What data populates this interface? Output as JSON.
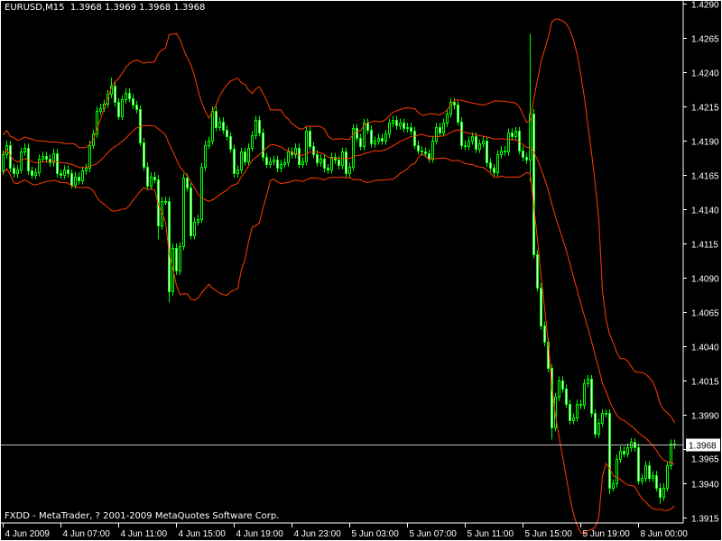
{
  "header": {
    "symbol": "EURUSD,M15",
    "quote": "1.3968 1.3969 1.3968 1.3968"
  },
  "footer": {
    "copyright": "FXDD - MetaTrader, ? 2001-2009 MetaQuotes Software Corp."
  },
  "colors": {
    "background": "#000000",
    "candle_outline": "#00ff00",
    "bull_fill": "#000000",
    "bear_fill": "#ffffff",
    "bands": "#ff3c00",
    "price_line": "#c0c0c0",
    "axis": "#ffffff"
  },
  "chart_data": {
    "type": "candlestick",
    "symbol": "EURUSD",
    "timeframe": "M15",
    "indicator": {
      "name": "Bollinger Bands",
      "period": 20,
      "deviation": 2
    },
    "ylim": [
      1.3915,
      1.429
    ],
    "y_ticks": [
      "1.4290",
      "1.4265",
      "1.4240",
      "1.4215",
      "1.4190",
      "1.4165",
      "1.4140",
      "1.4115",
      "1.4090",
      "1.4065",
      "1.4040",
      "1.4015",
      "1.3990",
      "1.3965",
      "1.3940",
      "1.3915"
    ],
    "x_tick_labels": [
      "4 Jun 2009",
      "4 Jun 07:00",
      "4 Jun 11:00",
      "4 Jun 15:00",
      "4 Jun 19:00",
      "4 Jun 23:00",
      "5 Jun 03:00",
      "5 Jun 07:00",
      "5 Jun 11:00",
      "5 Jun 15:00",
      "5 Jun 19:00",
      "8 Jun 00:00"
    ],
    "current_price": "1.3968",
    "first_open": 1.4168,
    "close": [
      1.418,
      1.4187,
      1.417,
      1.4166,
      1.4169,
      1.4182,
      1.4185,
      1.4168,
      1.4165,
      1.4167,
      1.4177,
      1.4179,
      1.4177,
      1.4174,
      1.4181,
      1.4166,
      1.4165,
      1.4169,
      1.4166,
      1.4158,
      1.4164,
      1.4161,
      1.4168,
      1.417,
      1.4187,
      1.4195,
      1.4212,
      1.4214,
      1.4217,
      1.4224,
      1.423,
      1.4218,
      1.4208,
      1.422,
      1.4225,
      1.4221,
      1.4216,
      1.4213,
      1.4189,
      1.4171,
      1.4157,
      1.4164,
      1.4162,
      1.4128,
      1.4146,
      1.4146,
      1.408,
      1.4112,
      1.4095,
      1.4113,
      1.4163,
      1.4156,
      1.4121,
      1.4131,
      1.4133,
      1.4171,
      1.4187,
      1.419,
      1.4212,
      1.42,
      1.4204,
      1.4198,
      1.4193,
      1.4184,
      1.4166,
      1.4169,
      1.4182,
      1.4175,
      1.4185,
      1.4194,
      1.4205,
      1.4196,
      1.4178,
      1.4173,
      1.4175,
      1.4176,
      1.417,
      1.4173,
      1.4174,
      1.4182,
      1.418,
      1.4185,
      1.4173,
      1.4175,
      1.4197,
      1.4186,
      1.418,
      1.4174,
      1.4177,
      1.417,
      1.4169,
      1.4178,
      1.4176,
      1.4172,
      1.4182,
      1.4166,
      1.4171,
      1.4199,
      1.4192,
      1.4186,
      1.4203,
      1.4198,
      1.4188,
      1.419,
      1.4192,
      1.419,
      1.4195,
      1.4203,
      1.4205,
      1.4201,
      1.4203,
      1.4199,
      1.42,
      1.4197,
      1.4187,
      1.4183,
      1.4182,
      1.4181,
      1.4177,
      1.419,
      1.42,
      1.4196,
      1.4203,
      1.421,
      1.4218,
      1.4216,
      1.4204,
      1.4187,
      1.4186,
      1.419,
      1.4193,
      1.4184,
      1.4188,
      1.419,
      1.4174,
      1.417,
      1.4167,
      1.418,
      1.4183,
      1.4182,
      1.4196,
      1.4193,
      1.4197,
      1.4183,
      1.4178,
      1.4176,
      1.421,
      1.4107,
      1.4083,
      1.4055,
      1.4043,
      1.4024,
      1.3981,
      1.4003,
      1.4015,
      1.4009,
      1.3998,
      1.3986,
      1.3988,
      1.3998,
      1.3997,
      1.4013,
      1.4016,
      1.3991,
      1.3976,
      1.3984,
      1.3991,
      1.3991,
      1.3937,
      1.394,
      1.3958,
      1.3964,
      1.3962,
      1.3966,
      1.397,
      1.3966,
      1.3942,
      1.3944,
      1.3953,
      1.3944,
      1.3946,
      1.3937,
      1.393,
      1.3937,
      1.3953,
      1.3969,
      1.3968
    ],
    "extremes": {
      "30": {
        "high": 1.4236
      },
      "43": {
        "low": 1.4118
      },
      "46": {
        "low": 1.4072
      },
      "146": {
        "high": 1.4268,
        "low": 1.416
      },
      "152": {
        "low": 1.3972
      },
      "168": {
        "low": 1.3932
      },
      "182": {
        "low": 1.3925
      }
    }
  }
}
